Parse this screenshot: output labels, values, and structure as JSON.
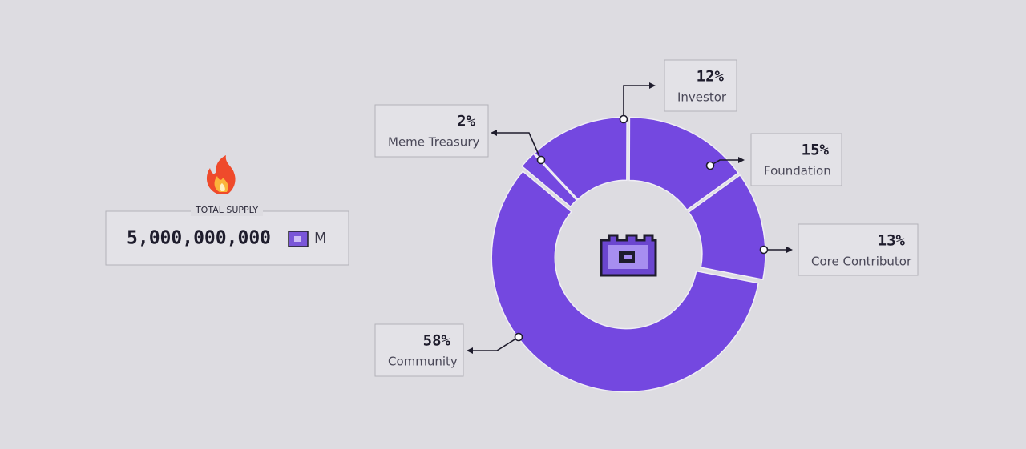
{
  "supply": {
    "label": "TOTAL SUPPLY",
    "amount": "5,000,000,000",
    "unit": "M"
  },
  "chart_data": {
    "type": "pie",
    "donut": true,
    "color": "#7448e0",
    "categories": [
      "Investor",
      "Foundation",
      "Core Contributor",
      "Community",
      "Meme Treasury"
    ],
    "values": [
      12,
      15,
      13,
      58,
      2
    ],
    "value_labels": [
      "12%",
      "15%",
      "13%",
      "58%",
      "2%"
    ]
  }
}
